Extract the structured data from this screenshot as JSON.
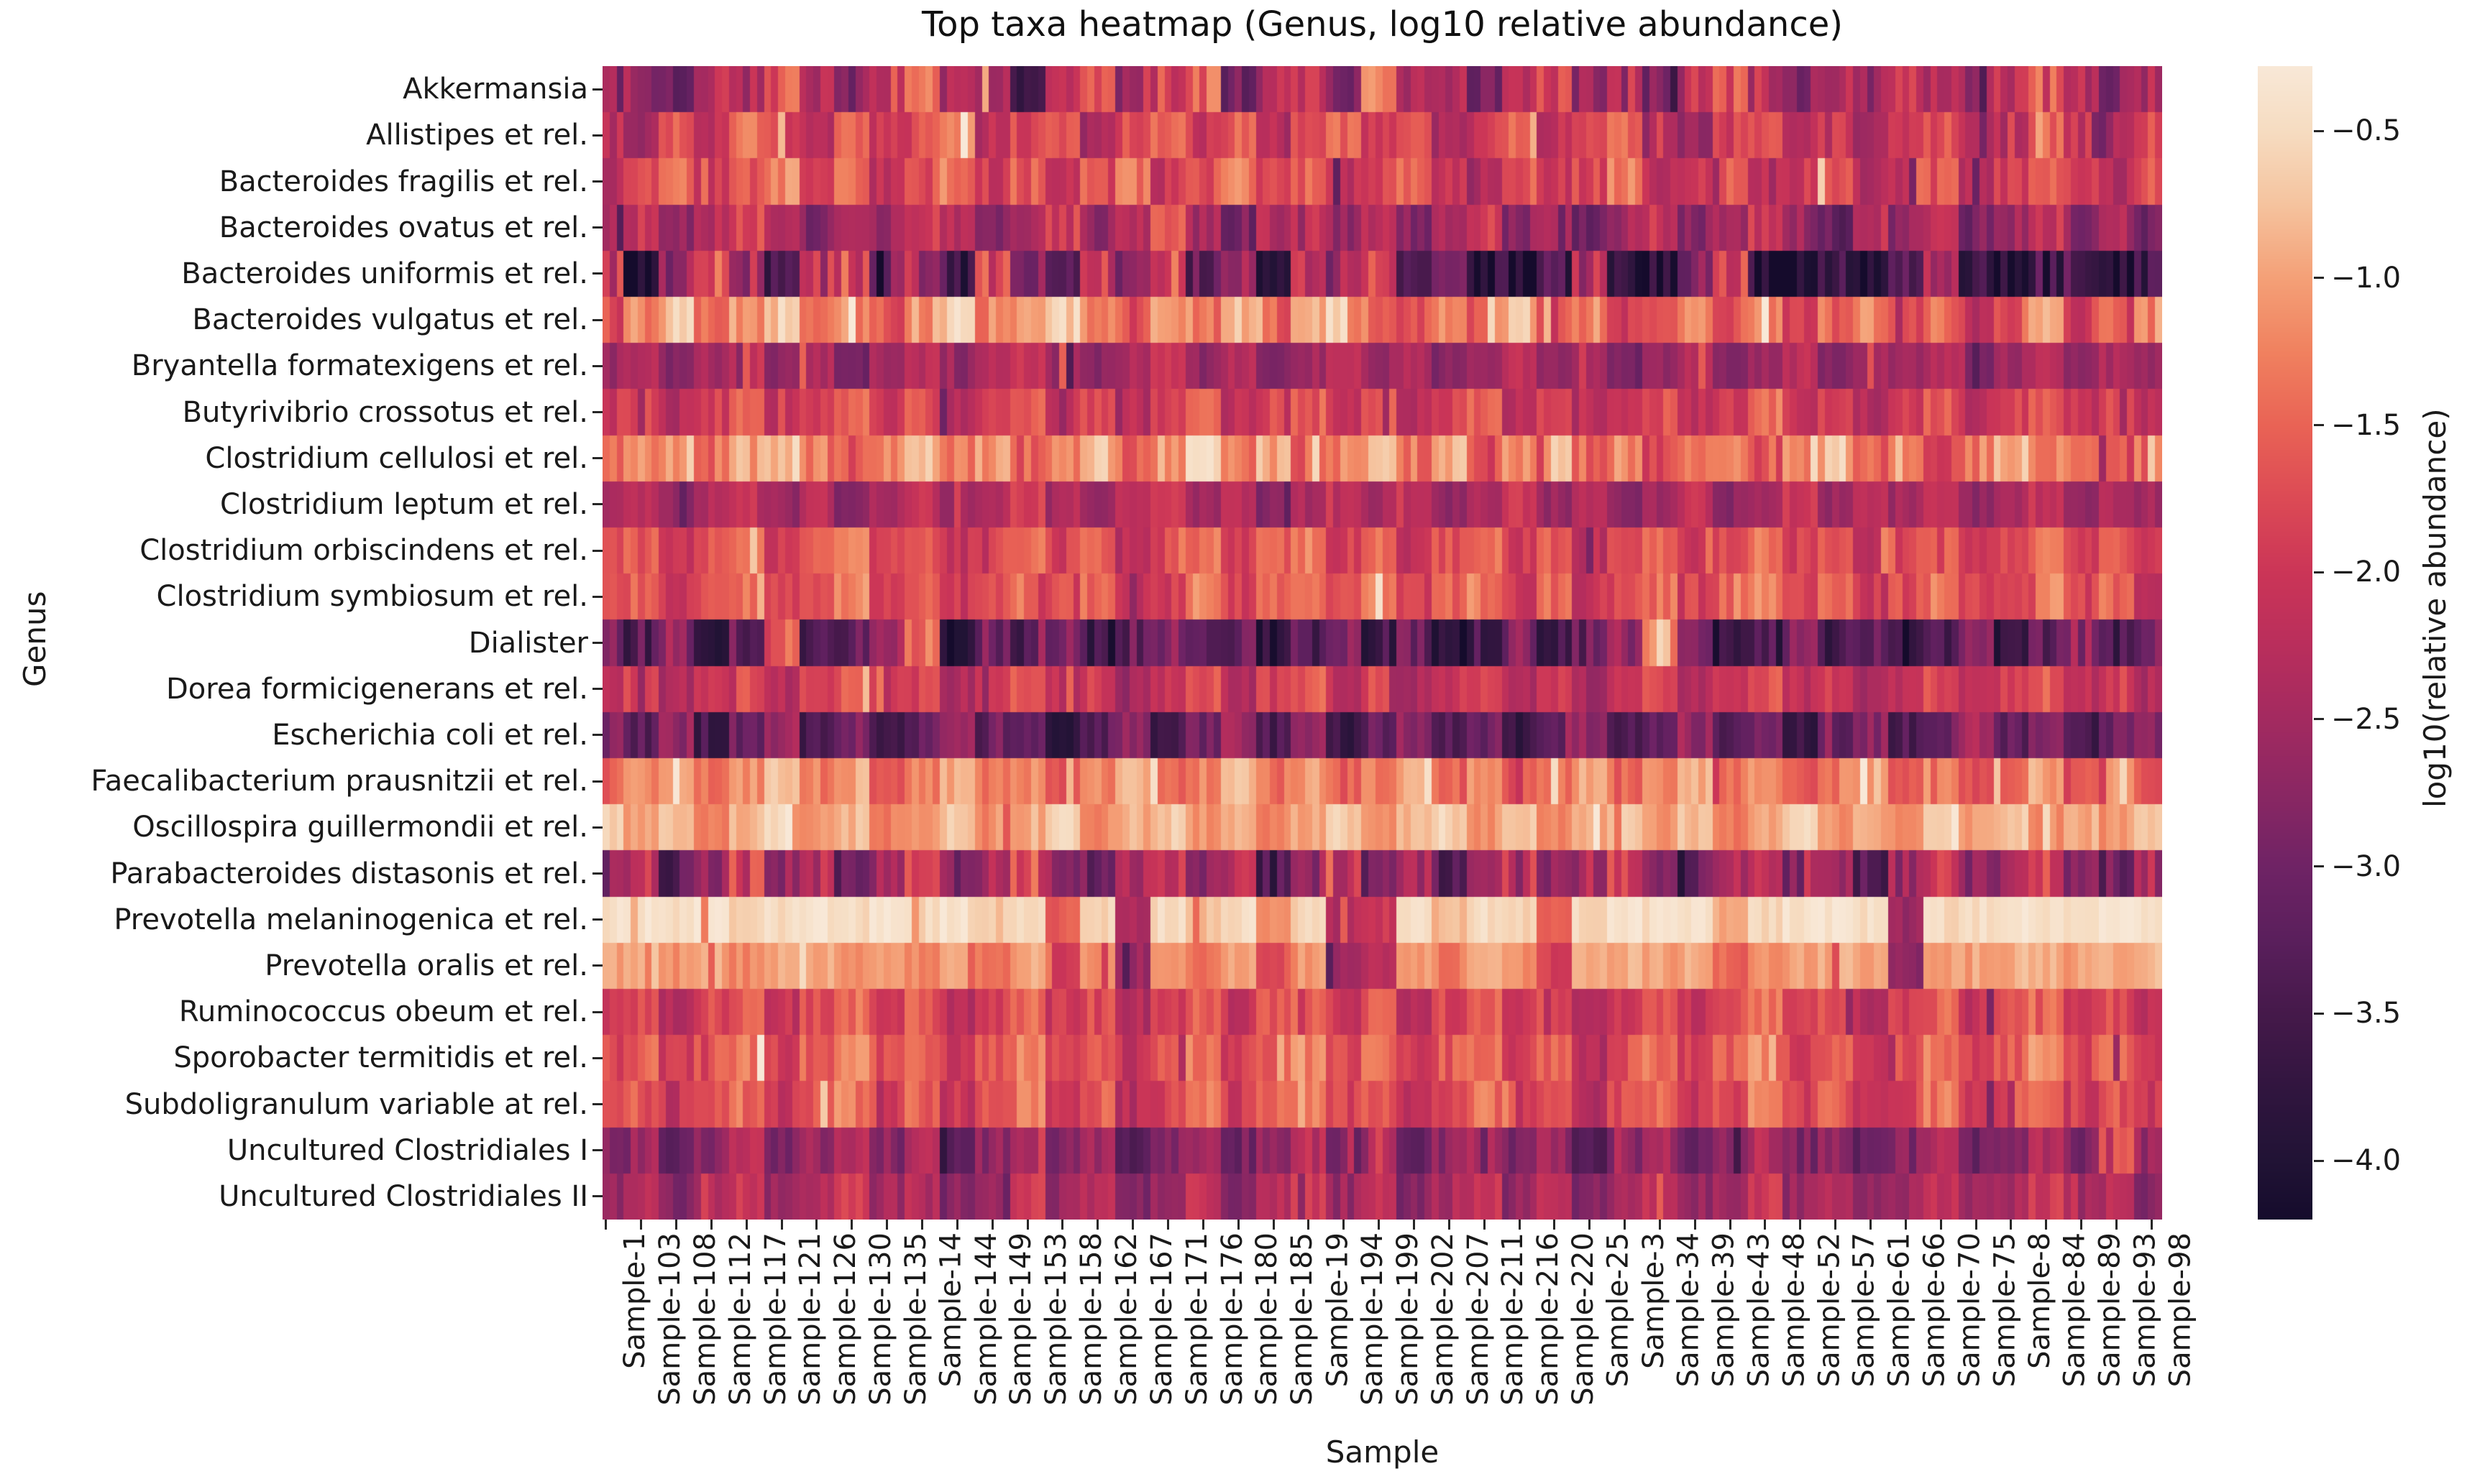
{
  "figure": {
    "background": "#ffffff",
    "text_color": "#1a1a1a"
  },
  "chart_data": {
    "type": "heatmap",
    "title": "Top taxa heatmap (Genus, log10 relative abundance)",
    "xlabel": "Sample",
    "ylabel": "Genus",
    "colorbar_label": "log10(relative abundance)",
    "colormap": "rocket",
    "vmin": -4.2,
    "vmax": -0.28,
    "n_cols": 222,
    "cols_per_tick": 5,
    "rows": [
      "Akkermansia",
      "Allistipes et rel.",
      "Bacteroides fragilis et rel.",
      "Bacteroides ovatus et rel.",
      "Bacteroides uniformis et rel.",
      "Bacteroides vulgatus et rel.",
      "Bryantella formatexigens et rel.",
      "Butyrivibrio crossotus et rel.",
      "Clostridium cellulosi et rel.",
      "Clostridium leptum et rel.",
      "Clostridium orbiscindens et rel.",
      "Clostridium symbiosum et rel.",
      "Dialister",
      "Dorea formicigenerans et rel.",
      "Escherichia coli et rel.",
      "Faecalibacterium prausnitzii et rel.",
      "Oscillospira guillermondii et rel.",
      "Parabacteroides distasonis et rel.",
      "Prevotella melaninogenica et rel.",
      "Prevotella oralis et rel.",
      "Ruminococcus obeum et rel.",
      "Sporobacter termitidis et rel.",
      "Subdoligranulum variable at rel.",
      "Uncultured Clostridiales I",
      "Uncultured Clostridiales II"
    ],
    "x_tick_labels": [
      "Sample-1",
      "Sample-103",
      "Sample-108",
      "Sample-112",
      "Sample-117",
      "Sample-121",
      "Sample-126",
      "Sample-130",
      "Sample-135",
      "Sample-14",
      "Sample-144",
      "Sample-149",
      "Sample-153",
      "Sample-158",
      "Sample-162",
      "Sample-167",
      "Sample-171",
      "Sample-176",
      "Sample-180",
      "Sample-185",
      "Sample-19",
      "Sample-194",
      "Sample-199",
      "Sample-202",
      "Sample-207",
      "Sample-211",
      "Sample-216",
      "Sample-220",
      "Sample-25",
      "Sample-3",
      "Sample-34",
      "Sample-39",
      "Sample-43",
      "Sample-48",
      "Sample-52",
      "Sample-57",
      "Sample-61",
      "Sample-66",
      "Sample-70",
      "Sample-75",
      "Sample-8",
      "Sample-84",
      "Sample-89",
      "Sample-93",
      "Sample-98"
    ],
    "colorbar_tick_labels": [
      "−0.5",
      "−1.0",
      "−1.5",
      "−2.0",
      "−2.5",
      "−3.0",
      "−3.5",
      "−4.0"
    ],
    "colorbar_tick_values": [
      -0.5,
      -1.0,
      -1.5,
      -2.0,
      -2.5,
      -3.0,
      -3.5,
      -4.0
    ],
    "colormap_stops": [
      [
        -0.28,
        "#f8e8d7"
      ],
      [
        -0.5,
        "#f6dcc1"
      ],
      [
        -0.75,
        "#f5c39e"
      ],
      [
        -1.0,
        "#f4a077"
      ],
      [
        -1.25,
        "#f0815f"
      ],
      [
        -1.5,
        "#e96355"
      ],
      [
        -1.75,
        "#dc4a55"
      ],
      [
        -2.0,
        "#cb3557"
      ],
      [
        -2.25,
        "#b92e5c"
      ],
      [
        -2.5,
        "#a32a60"
      ],
      [
        -2.75,
        "#8a2763"
      ],
      [
        -3.0,
        "#6f2365"
      ],
      [
        -3.25,
        "#5a1f5c"
      ],
      [
        -3.5,
        "#45194a"
      ],
      [
        -3.75,
        "#31153f"
      ],
      [
        -4.0,
        "#211335"
      ],
      [
        -4.2,
        "#150b2c"
      ]
    ],
    "row_jitter": [
      0.4,
      0.3,
      0.3,
      0.3,
      0.55,
      0.35,
      0.2,
      0.25,
      0.35,
      0.2,
      0.25,
      0.3,
      0.45,
      0.25,
      0.3,
      0.25,
      0.18,
      0.45,
      0.15,
      0.18,
      0.25,
      0.28,
      0.3,
      0.28,
      0.25
    ],
    "values": [
      [
        -2.0,
        -2.6,
        -3.2,
        -2.2,
        -2.4,
        -1.6,
        -2.3,
        -2.8,
        -2.1,
        -1.3,
        -2.5,
        -2.2,
        -3.6,
        -2.4,
        -1.8,
        -2.6,
        -2.2,
        -1.5,
        -2.9,
        -2.3,
        -2.0,
        -2.7,
        -1.4,
        -2.5,
        -2.2,
        -3.0,
        -2.4,
        -1.9,
        -2.6,
        -2.1,
        -2.8,
        -2.3,
        -1.7,
        -2.5,
        -2.9,
        -2.2,
        -2.6,
        -2.0,
        -2.4,
        -2.7,
        -2.1,
        -1.6,
        -2.3,
        -2.8,
        -2.4
      ],
      [
        -2.2,
        -2.4,
        -1.6,
        -2.1,
        -1.4,
        -1.8,
        -2.3,
        -1.5,
        -2.0,
        -1.7,
        -1.3,
        -2.2,
        -1.9,
        -1.5,
        -2.4,
        -1.8,
        -1.4,
        -2.0,
        -1.6,
        -2.3,
        -1.9,
        -1.5,
        -2.1,
        -1.7,
        -2.4,
        -2.0,
        -1.6,
        -2.2,
        -1.8,
        -1.4,
        -2.1,
        -2.5,
        -1.9,
        -1.6,
        -2.2,
        -1.8,
        -2.6,
        -2.0,
        -1.7,
        -2.3,
        -1.9,
        -1.5,
        -2.1,
        -2.4,
        -1.8
      ],
      [
        -2.3,
        -1.8,
        -1.4,
        -2.0,
        -1.6,
        -1.2,
        -1.9,
        -1.5,
        -2.1,
        -1.7,
        -1.3,
        -2.0,
        -1.6,
        -2.2,
        -1.8,
        -1.4,
        -2.1,
        -1.7,
        -1.3,
        -1.9,
        -1.5,
        -2.2,
        -1.8,
        -1.4,
        -2.0,
        -2.4,
        -1.6,
        -2.1,
        -1.8,
        -1.3,
        -2.2,
        -1.9,
        -1.5,
        -2.3,
        -2.0,
        -1.6,
        -2.4,
        -2.1,
        -1.7,
        -2.2,
        -1.9,
        -1.4,
        -2.0,
        -2.3,
        -1.6
      ],
      [
        -2.5,
        -2.1,
        -2.7,
        -2.3,
        -1.8,
        -2.4,
        -2.9,
        -2.2,
        -2.6,
        -1.9,
        -2.3,
        -2.8,
        -2.4,
        -2.0,
        -2.6,
        -2.2,
        -1.7,
        -2.5,
        -2.9,
        -2.3,
        -2.0,
        -2.6,
        -2.2,
        -2.8,
        -2.4,
        -1.9,
        -2.7,
        -2.3,
        -3.0,
        -2.5,
        -2.1,
        -2.8,
        -2.4,
        -2.0,
        -2.6,
        -3.1,
        -2.3,
        -2.7,
        -2.2,
        -2.9,
        -2.5,
        -2.1,
        -2.7,
        -2.4,
        -3.0
      ],
      [
        -2.0,
        -3.8,
        -2.6,
        -1.6,
        -2.8,
        -3.4,
        -2.2,
        -1.8,
        -3.0,
        -2.4,
        -3.6,
        -1.9,
        -2.7,
        -3.2,
        -2.1,
        -2.9,
        -1.7,
        -3.3,
        -2.5,
        -3.8,
        -2.2,
        -2.8,
        -1.9,
        -3.1,
        -2.6,
        -3.9,
        -4.1,
        -3.5,
        -2.3,
        -3.8,
        -4.0,
        -3.3,
        -1.8,
        -3.9,
        -4.1,
        -3.6,
        -4.0,
        -3.4,
        -2.4,
        -3.8,
        -4.1,
        -3.7,
        -3.2,
        -4.0,
        -3.6
      ],
      [
        -1.8,
        -1.2,
        -0.8,
        -1.5,
        -1.0,
        -0.7,
        -1.3,
        -0.9,
        -1.6,
        -1.1,
        -0.7,
        -1.4,
        -1.0,
        -0.6,
        -1.2,
        -1.7,
        -0.9,
        -1.3,
        -0.8,
        -1.5,
        -1.1,
        -0.7,
        -1.4,
        -1.8,
        -1.0,
        -1.3,
        -0.9,
        -1.6,
        -1.2,
        -1.9,
        -1.5,
        -1.0,
        -1.7,
        -1.3,
        -2.0,
        -1.6,
        -1.1,
        -1.8,
        -1.4,
        -2.1,
        -1.6,
        -0.8,
        -1.9,
        -1.5,
        -1.2
      ],
      [
        -2.6,
        -2.3,
        -2.8,
        -2.4,
        -2.1,
        -2.7,
        -2.4,
        -2.9,
        -2.5,
        -2.2,
        -2.7,
        -2.3,
        -2.0,
        -2.6,
        -2.8,
        -2.4,
        -2.1,
        -2.7,
        -2.3,
        -2.9,
        -2.5,
        -2.2,
        -2.6,
        -2.4,
        -2.8,
        -2.5,
        -2.1,
        -2.7,
        -2.4,
        -2.9,
        -2.6,
        -2.3,
        -2.8,
        -2.5,
        -2.2,
        -2.7,
        -2.4,
        -2.6,
        -2.3,
        -2.8,
        -2.5,
        -2.2,
        -2.7,
        -2.4,
        -2.6
      ],
      [
        -2.1,
        -1.8,
        -2.3,
        -1.9,
        -1.6,
        -2.2,
        -1.8,
        -1.5,
        -2.0,
        -1.7,
        -2.4,
        -1.9,
        -1.6,
        -2.1,
        -1.8,
        -2.3,
        -2.0,
        -1.6,
        -2.2,
        -1.8,
        -1.5,
        -2.1,
        -1.7,
        -2.3,
        -1.9,
        -1.6,
        -2.2,
        -1.8,
        -2.4,
        -2.0,
        -1.7,
        -2.2,
        -1.9,
        -1.5,
        -2.1,
        -1.8,
        -2.3,
        -2.0,
        -1.6,
        -2.2,
        -1.9,
        -1.5,
        -2.1,
        -1.8,
        -2.3
      ],
      [
        -1.6,
        -1.2,
        -0.9,
        -1.4,
        -1.0,
        -0.7,
        -1.3,
        -1.7,
        -1.1,
        -0.8,
        -1.4,
        -1.0,
        -1.6,
        -1.2,
        -0.8,
        -1.5,
        -1.1,
        -0.7,
        -1.3,
        -0.9,
        -1.6,
        -1.2,
        -0.8,
        -1.4,
        -1.0,
        -1.7,
        -1.3,
        -0.9,
        -1.5,
        -1.1,
        -1.8,
        -1.4,
        -1.0,
        -1.6,
        -1.2,
        -0.8,
        -1.5,
        -1.1,
        -1.7,
        -1.3,
        -0.9,
        -1.5,
        -1.1,
        -1.8,
        -1.4
      ],
      [
        -2.5,
        -2.2,
        -2.7,
        -2.3,
        -2.0,
        -2.6,
        -2.2,
        -2.8,
        -2.4,
        -2.1,
        -2.6,
        -2.3,
        -1.9,
        -2.5,
        -2.7,
        -2.3,
        -2.0,
        -2.6,
        -2.2,
        -2.8,
        -2.4,
        -2.1,
        -2.5,
        -2.2,
        -2.7,
        -2.4,
        -2.0,
        -2.6,
        -2.3,
        -2.8,
        -2.5,
        -2.1,
        -2.7,
        -2.4,
        -2.0,
        -2.6,
        -2.2,
        -2.5,
        -2.2,
        -2.7,
        -2.4,
        -2.1,
        -2.6,
        -2.3,
        -2.5
      ],
      [
        -1.9,
        -1.6,
        -2.1,
        -1.7,
        -1.4,
        -2.0,
        -1.6,
        -1.3,
        -1.8,
        -1.5,
        -2.1,
        -1.7,
        -1.4,
        -1.9,
        -1.6,
        -2.2,
        -1.8,
        -1.4,
        -2.0,
        -1.6,
        -1.3,
        -1.9,
        -1.5,
        -2.1,
        -1.7,
        -1.4,
        -2.0,
        -1.6,
        -2.2,
        -1.8,
        -1.5,
        -2.0,
        -1.7,
        -1.3,
        -1.9,
        -1.6,
        -2.1,
        -1.8,
        -1.4,
        -2.0,
        -1.7,
        -1.3,
        -1.9,
        -1.6,
        -2.1
      ],
      [
        -1.8,
        -1.5,
        -2.0,
        -1.6,
        -1.3,
        -1.9,
        -1.5,
        -1.2,
        -1.7,
        -1.4,
        -2.0,
        -1.6,
        -1.3,
        -1.8,
        -1.5,
        -2.1,
        -1.7,
        -1.3,
        -1.9,
        -1.5,
        -1.2,
        -1.8,
        -1.4,
        -2.0,
        -1.6,
        -1.3,
        -1.9,
        -1.5,
        -2.1,
        -1.7,
        -1.4,
        -1.9,
        -1.6,
        -1.2,
        -1.8,
        -1.5,
        -2.0,
        -1.7,
        -1.3,
        -1.9,
        -1.6,
        -1.2,
        -1.8,
        -1.5,
        -2.0
      ],
      [
        -3.0,
        -3.5,
        -2.7,
        -3.8,
        -3.2,
        -1.7,
        -3.6,
        -3.1,
        -2.6,
        -1.5,
        -3.9,
        -3.0,
        -3.5,
        -2.8,
        -3.7,
        -3.2,
        -2.7,
        -3.5,
        -3.0,
        -3.8,
        -3.3,
        -2.8,
        -3.6,
        -3.1,
        -3.9,
        -3.4,
        -2.9,
        -3.6,
        -3.1,
        -2.6,
        -1.1,
        -3.0,
        -3.7,
        -3.2,
        -2.8,
        -3.5,
        -3.1,
        -3.8,
        -3.3,
        -2.9,
        -3.6,
        -3.1,
        -2.7,
        -3.4,
        -3.0
      ],
      [
        -2.2,
        -1.9,
        -2.4,
        -2.0,
        -1.7,
        -2.3,
        -1.9,
        -1.6,
        -2.1,
        -1.8,
        -2.4,
        -2.0,
        -1.7,
        -2.2,
        -1.9,
        -2.5,
        -2.1,
        -1.7,
        -2.3,
        -1.9,
        -1.6,
        -2.2,
        -1.8,
        -2.4,
        -2.0,
        -1.7,
        -2.3,
        -1.9,
        -2.5,
        -2.1,
        -1.8,
        -2.3,
        -2.0,
        -1.6,
        -2.2,
        -1.9,
        -2.4,
        -2.1,
        -1.7,
        -2.3,
        -2.0,
        -1.6,
        -2.2,
        -1.9,
        -2.4
      ],
      [
        -2.9,
        -3.3,
        -2.7,
        -3.5,
        -3.0,
        -2.6,
        -3.4,
        -2.9,
        -3.6,
        -3.1,
        -2.7,
        -3.4,
        -3.0,
        -3.7,
        -3.2,
        -2.8,
        -3.5,
        -3.0,
        -2.6,
        -3.3,
        -2.9,
        -3.6,
        -3.1,
        -2.7,
        -3.4,
        -3.0,
        -3.7,
        -3.2,
        -2.8,
        -3.5,
        -3.1,
        -2.6,
        -3.3,
        -2.9,
        -3.6,
        -3.2,
        -2.7,
        -3.4,
        -3.0,
        -2.5,
        -3.2,
        -2.8,
        -3.5,
        -3.1,
        -2.7
      ],
      [
        -1.5,
        -1.2,
        -0.9,
        -1.4,
        -1.1,
        -0.8,
        -1.3,
        -1.0,
        -1.6,
        -1.2,
        -0.9,
        -1.4,
        -1.1,
        -1.7,
        -1.3,
        -1.0,
        -1.5,
        -1.2,
        -0.8,
        -1.4,
        -1.1,
        -1.6,
        -1.3,
        -0.9,
        -1.5,
        -1.2,
        -1.7,
        -1.3,
        -1.0,
        -1.5,
        -1.2,
        -0.8,
        -1.4,
        -1.1,
        -1.6,
        -1.3,
        -0.9,
        -1.5,
        -1.2,
        -1.7,
        -1.4,
        -1.0,
        -1.5,
        -1.2,
        -1.6
      ],
      [
        -0.6,
        -1.0,
        -0.8,
        -1.2,
        -0.9,
        -0.6,
        -1.1,
        -0.8,
        -1.3,
        -1.0,
        -0.7,
        -1.1,
        -0.9,
        -0.6,
        -1.2,
        -0.9,
        -0.7,
        -1.1,
        -0.8,
        -1.3,
        -1.0,
        -0.7,
        -1.2,
        -0.9,
        -0.6,
        -1.1,
        -0.8,
        -1.2,
        -0.9,
        -0.7,
        -1.1,
        -0.8,
        -1.3,
        -1.0,
        -0.6,
        -1.1,
        -0.9,
        -1.2,
        -0.8,
        -1.0,
        -0.7,
        -1.2,
        -0.9,
        -1.1,
        -0.8
      ],
      [
        -2.8,
        -2.2,
        -3.1,
        -2.5,
        -1.9,
        -2.7,
        -2.3,
        -3.2,
        -2.6,
        -2.0,
        -2.9,
        -2.4,
        -1.8,
        -2.7,
        -3.1,
        -2.4,
        -2.0,
        -2.8,
        -2.3,
        -3.3,
        -2.6,
        -2.1,
        -2.9,
        -2.4,
        -3.2,
        -2.7,
        -2.1,
        -2.8,
        -2.4,
        -1.9,
        -2.7,
        -3.1,
        -2.5,
        -2.0,
        -2.8,
        -2.3,
        -3.2,
        -2.6,
        -2.1,
        -2.9,
        -2.5,
        -1.9,
        -2.7,
        -3.0,
        -2.4
      ],
      [
        -0.4,
        -0.35,
        -0.5,
        -0.4,
        -0.6,
        -0.45,
        -0.35,
        -0.5,
        -0.4,
        -0.55,
        -0.45,
        -0.7,
        -0.5,
        -1.6,
        -0.6,
        -2.4,
        -0.5,
        -0.8,
        -0.45,
        -1.2,
        -0.6,
        -2.4,
        -2.0,
        -0.5,
        -0.8,
        -0.45,
        -0.6,
        -1.5,
        -0.5,
        -0.35,
        -0.45,
        -0.4,
        -0.9,
        -0.5,
        -0.4,
        -0.35,
        -0.45,
        -2.6,
        -0.5,
        -0.45,
        -0.35,
        -0.4,
        -0.45,
        -0.4,
        -0.35
      ],
      [
        -1.0,
        -0.9,
        -1.1,
        -0.95,
        -1.2,
        -1.0,
        -0.9,
        -1.1,
        -1.0,
        -1.15,
        -1.0,
        -1.3,
        -1.0,
        -2.0,
        -1.1,
        -2.6,
        -1.0,
        -1.4,
        -0.95,
        -1.7,
        -1.1,
        -2.5,
        -2.2,
        -1.0,
        -1.3,
        -0.95,
        -1.1,
        -1.9,
        -1.0,
        -0.9,
        -1.0,
        -0.95,
        -1.4,
        -1.05,
        -0.95,
        -0.9,
        -1.0,
        -2.7,
        -1.05,
        -1.0,
        -0.9,
        -0.95,
        -1.0,
        -0.95,
        -0.9
      ],
      [
        -2.0,
        -1.7,
        -2.2,
        -1.8,
        -1.5,
        -2.1,
        -1.7,
        -1.4,
        -1.9,
        -1.6,
        -2.2,
        -1.8,
        -1.5,
        -2.0,
        -1.7,
        -2.3,
        -1.9,
        -1.5,
        -2.1,
        -1.7,
        -1.4,
        -2.0,
        -1.6,
        -2.2,
        -1.8,
        -1.5,
        -2.1,
        -1.7,
        -2.3,
        -1.9,
        -1.6,
        -2.1,
        -1.8,
        -1.4,
        -2.0,
        -1.7,
        -2.2,
        -1.9,
        -1.5,
        -2.1,
        -1.8,
        -1.4,
        -2.0,
        -1.7,
        -2.2
      ],
      [
        -1.8,
        -1.5,
        -2.0,
        -1.6,
        -1.3,
        -1.9,
        -1.5,
        -1.2,
        -1.7,
        -1.4,
        -2.0,
        -1.6,
        -1.3,
        -1.8,
        -1.5,
        -2.1,
        -1.7,
        -1.3,
        -1.9,
        -1.5,
        -1.2,
        -1.8,
        -1.4,
        -2.0,
        -1.6,
        -1.3,
        -1.9,
        -1.5,
        -2.1,
        -1.7,
        -1.4,
        -1.9,
        -1.6,
        -1.2,
        -1.8,
        -1.5,
        -2.0,
        -1.7,
        -1.3,
        -1.9,
        -1.6,
        -1.2,
        -1.8,
        -1.5,
        -2.0
      ],
      [
        -1.9,
        -1.6,
        -2.1,
        -1.7,
        -1.4,
        -2.0,
        -1.6,
        -1.3,
        -1.8,
        -1.5,
        -2.1,
        -1.7,
        -1.4,
        -1.9,
        -1.6,
        -2.2,
        -1.8,
        -1.4,
        -2.0,
        -1.6,
        -1.3,
        -1.9,
        -1.5,
        -2.1,
        -1.7,
        -1.4,
        -2.0,
        -1.6,
        -2.2,
        -1.8,
        -1.5,
        -2.0,
        -1.7,
        -1.3,
        -1.9,
        -1.6,
        -2.1,
        -1.8,
        -1.4,
        -2.0,
        -1.7,
        -1.3,
        -1.9,
        -1.6,
        -2.1
      ],
      [
        -2.9,
        -2.5,
        -3.1,
        -2.7,
        -2.3,
        -3.0,
        -2.6,
        -2.2,
        -2.8,
        -2.4,
        -3.1,
        -2.7,
        -2.3,
        -2.9,
        -2.6,
        -3.2,
        -2.8,
        -2.4,
        -3.0,
        -2.6,
        -2.2,
        -2.9,
        -2.5,
        -3.1,
        -2.7,
        -2.4,
        -3.0,
        -2.6,
        -3.2,
        -2.8,
        -2.5,
        -3.0,
        -2.7,
        -2.3,
        -2.9,
        -2.6,
        -3.1,
        -2.8,
        -2.4,
        -3.0,
        -2.7,
        -2.3,
        -2.9,
        -1.6,
        -2.6
      ],
      [
        -2.6,
        -2.2,
        -2.8,
        -2.4,
        -2.0,
        -2.7,
        -2.3,
        -1.9,
        -2.5,
        -2.1,
        -2.8,
        -2.4,
        -2.0,
        -2.6,
        -2.3,
        -2.9,
        -2.5,
        -2.1,
        -2.7,
        -2.3,
        -1.9,
        -2.6,
        -2.2,
        -2.8,
        -2.4,
        -2.1,
        -2.7,
        -2.3,
        -2.9,
        -2.5,
        -2.2,
        -2.7,
        -2.4,
        -2.0,
        -2.6,
        -2.3,
        -2.8,
        -2.5,
        -2.1,
        -2.7,
        -2.4,
        -2.0,
        -2.6,
        -2.3,
        -2.8
      ]
    ]
  }
}
